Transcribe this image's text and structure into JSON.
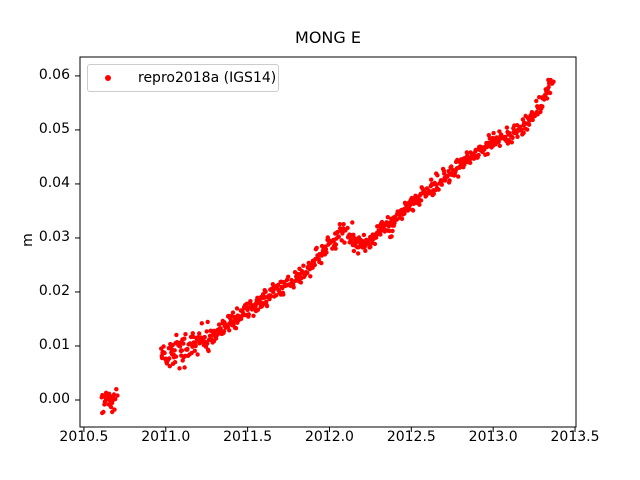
{
  "figure": {
    "background": "#ffffff",
    "frame_color": "#000000"
  },
  "chart_data": {
    "type": "scatter",
    "title": "MONG E",
    "xlabel": "",
    "ylabel": "m",
    "xlim": [
      2010.476,
      2013.506
    ],
    "ylim": [
      -0.005,
      0.0635
    ],
    "grid": false,
    "xticks": {
      "values": [
        2010.5,
        2011.0,
        2011.5,
        2012.0,
        2012.5,
        2013.0,
        2013.5
      ],
      "labels": [
        "2010.5",
        "2011.0",
        "2011.5",
        "2012.0",
        "2012.5",
        "2013.0",
        "2013.5"
      ]
    },
    "yticks": {
      "values": [
        0.0,
        0.01,
        0.02,
        0.03,
        0.04,
        0.05,
        0.06
      ],
      "labels": [
        "0.00",
        "0.01",
        "0.02",
        "0.03",
        "0.04",
        "0.05",
        "0.06"
      ]
    },
    "legend": {
      "position": "upper left",
      "entries": [
        {
          "label": "repro2018a (IGS14)",
          "marker": "dot",
          "color": "#ff0000"
        }
      ]
    },
    "series": [
      {
        "name": "repro2018a (IGS14)",
        "color": "#ff0000",
        "marker": "dot",
        "marker_radius_px": 2.2,
        "seed": 42,
        "segments": [
          {
            "name": "initial-cluster",
            "x_start": 2010.608,
            "x_end": 2010.705,
            "n": 30,
            "mean": -0.0002,
            "sd": 0.0011,
            "y_min": -0.0024,
            "y_max": 0.002
          },
          {
            "name": "main-trend",
            "x_start": 2010.972,
            "x_end": 2013.368,
            "n": 820,
            "dropout": 0.13,
            "sd": 0.0008,
            "sd_early": 0.0016,
            "sd_early_until": 2011.22,
            "outlier_prob": 0.012
          }
        ],
        "trend_anchors": [
          [
            2010.972,
            0.0075
          ],
          [
            2011.02,
            0.0085
          ],
          [
            2011.1,
            0.0096
          ],
          [
            2011.18,
            0.01
          ],
          [
            2011.25,
            0.0112
          ],
          [
            2011.35,
            0.0132
          ],
          [
            2011.45,
            0.0155
          ],
          [
            2011.55,
            0.0178
          ],
          [
            2011.62,
            0.019
          ],
          [
            2011.7,
            0.0206
          ],
          [
            2011.78,
            0.022
          ],
          [
            2011.86,
            0.0238
          ],
          [
            2011.95,
            0.0268
          ],
          [
            2012.02,
            0.0295
          ],
          [
            2012.07,
            0.0315
          ],
          [
            2012.12,
            0.0303
          ],
          [
            2012.18,
            0.0285
          ],
          [
            2012.24,
            0.0292
          ],
          [
            2012.32,
            0.0313
          ],
          [
            2012.42,
            0.034
          ],
          [
            2012.52,
            0.0372
          ],
          [
            2012.62,
            0.0392
          ],
          [
            2012.72,
            0.0418
          ],
          [
            2012.82,
            0.044
          ],
          [
            2012.92,
            0.0462
          ],
          [
            2013.0,
            0.0478
          ],
          [
            2013.08,
            0.0488
          ],
          [
            2013.16,
            0.05
          ],
          [
            2013.24,
            0.0523
          ],
          [
            2013.31,
            0.0556
          ],
          [
            2013.368,
            0.0598
          ]
        ]
      }
    ]
  }
}
